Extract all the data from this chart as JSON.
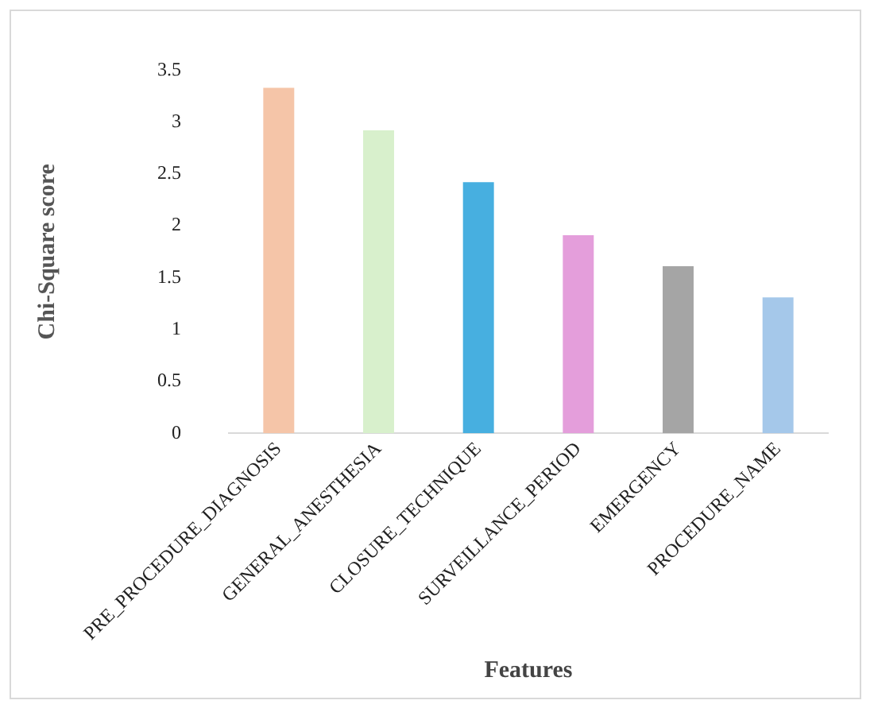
{
  "chart_data": {
    "type": "bar",
    "xlabel": "Features",
    "ylabel": "Chi-Square score",
    "categories": [
      "PRE_PROCEDURE_DIAGNOSIS",
      "GENERAL_ANESTHESIA",
      "CLOSURE_TECHNIQUE",
      "SURVEILLANCE_PERIOD",
      "EMERGENCY",
      "PROCEDURE_NAME"
    ],
    "values": [
      3.33,
      2.92,
      2.42,
      1.91,
      1.61,
      1.31
    ],
    "colors": [
      "#f5c5a8",
      "#d8f0cc",
      "#47afe0",
      "#e49edb",
      "#a5a5a5",
      "#a5c8ea"
    ],
    "ylim": [
      0,
      3.5
    ],
    "yticks": [
      0,
      0.5,
      1,
      1.5,
      2,
      2.5,
      3,
      3.5
    ],
    "grid": false,
    "legend": false
  }
}
